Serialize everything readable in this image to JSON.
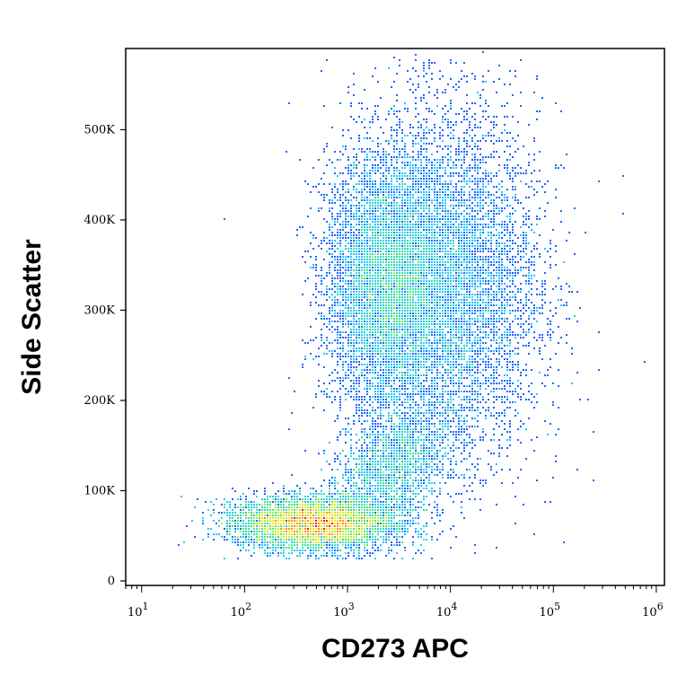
{
  "chart_data": {
    "type": "scatter",
    "style": "density-dot-plot",
    "xlabel": "CD273 APC",
    "ylabel": "Side Scatter",
    "x_scale": "log",
    "xlim": [
      7,
      1200000
    ],
    "ylim": [
      -5000,
      590000
    ],
    "x_ticks": [
      {
        "value": 10,
        "base": "10",
        "exp": "1"
      },
      {
        "value": 100,
        "base": "10",
        "exp": "2"
      },
      {
        "value": 1000,
        "base": "10",
        "exp": "3"
      },
      {
        "value": 10000,
        "base": "10",
        "exp": "4"
      },
      {
        "value": 100000,
        "base": "10",
        "exp": "5"
      },
      {
        "value": 1000000,
        "base": "10",
        "exp": "6"
      }
    ],
    "y_ticks": [
      {
        "value": 0,
        "label": "0"
      },
      {
        "value": 100000,
        "label": "100K"
      },
      {
        "value": 200000,
        "label": "200K"
      },
      {
        "value": 300000,
        "label": "300K"
      },
      {
        "value": 400000,
        "label": "400K"
      },
      {
        "value": 500000,
        "label": "500K"
      }
    ],
    "populations": [
      {
        "name_visible": false,
        "center_x": 450,
        "center_y": 65000,
        "spread_log10_x": 0.38,
        "spread_y": 14000,
        "peak_density": "high",
        "color_at_peak": "#e8102a"
      },
      {
        "name_visible": false,
        "center_x": 2200,
        "center_y": 330000,
        "spread_log10_x": 0.28,
        "spread_y": 70000,
        "peak_density": "medium",
        "color_at_peak": "#f0f020"
      },
      {
        "name_visible": false,
        "center_x": 9000,
        "center_y": 330000,
        "spread_log10_x": 0.45,
        "spread_y": 95000,
        "peak_density": "low",
        "color_at_peak": "#3ad0c8"
      },
      {
        "name_visible": false,
        "center_x": 2500,
        "center_y": 120000,
        "spread_log10_x": 0.3,
        "spread_y": 35000,
        "peak_density": "medium",
        "color_at_peak": "#60e060"
      }
    ],
    "color_scale": [
      "#0a14c8",
      "#1e64ff",
      "#1ec8ff",
      "#3ce696",
      "#b4f032",
      "#ffe619",
      "#ff8c14",
      "#f0141e"
    ],
    "grid": false,
    "legend": "none"
  }
}
